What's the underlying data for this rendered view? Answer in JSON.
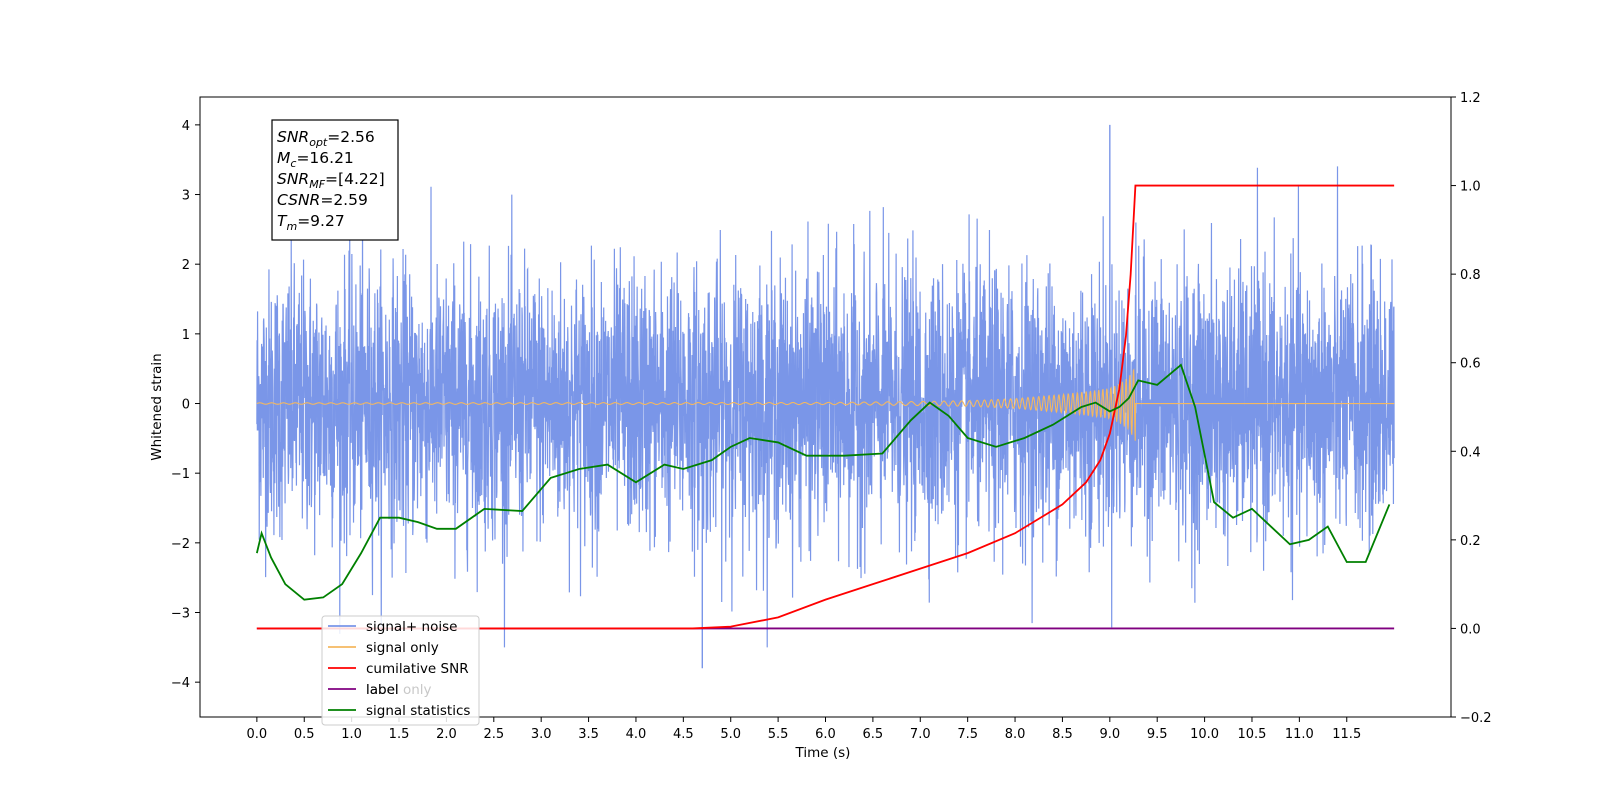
{
  "chart_data": {
    "type": "line",
    "xlabel": "Time (s)",
    "ylabel": "Whitened strain",
    "xlim": [
      -0.6,
      12.6
    ],
    "ylim": [
      -4.5,
      4.4
    ],
    "y2lim": [
      -0.2,
      1.2
    ],
    "x_ticks": [
      "0.0",
      "0.5",
      "1.0",
      "1.5",
      "2.0",
      "2.5",
      "3.0",
      "3.5",
      "4.0",
      "4.5",
      "5.0",
      "5.5",
      "6.0",
      "6.5",
      "7.0",
      "7.5",
      "8.0",
      "8.5",
      "9.0",
      "9.5",
      "10.0",
      "10.5",
      "11.0",
      "11.5"
    ],
    "y_ticks": [
      "4",
      "3",
      "2",
      "1",
      "0",
      "−1",
      "−2",
      "−3",
      "−4"
    ],
    "y2_ticks": [
      "1.2",
      "1.0",
      "0.8",
      "0.6",
      "0.4",
      "0.2",
      "0.0",
      "−0.2"
    ],
    "legend": {
      "location": "lower left",
      "entries": [
        {
          "label": "signal+ noise",
          "color": "#7a96e8"
        },
        {
          "label": "signal only",
          "color": "#f4b860"
        },
        {
          "label": "cumilative SNR",
          "color": "#ff0000"
        },
        {
          "label": "label",
          "color": "#800080"
        },
        {
          "label": "signal statistics",
          "color": "#008000"
        }
      ],
      "hidden_partial_label": "label only"
    },
    "info_box": {
      "lines": [
        {
          "sym": "SNR",
          "sub": "opt",
          "value": "=2.56"
        },
        {
          "sym": "M",
          "sub": "c",
          "value": "=16.21"
        },
        {
          "sym": "SNR",
          "sub": "MF",
          "value": "=[4.22]"
        },
        {
          "sym": "CSNR",
          "sub": "",
          "value": "=2.59"
        },
        {
          "sym": "T",
          "sub": "m",
          "value": "=9.27"
        }
      ]
    },
    "series": [
      {
        "name": "signal+ noise",
        "color": "#7a96e8",
        "axis": "left",
        "x_range": [
          0,
          12
        ],
        "envelope_typical": [
          -2.2,
          2.2
        ],
        "max_peak": 4.0,
        "min_peak": -3.8
      },
      {
        "name": "signal only",
        "color": "#f4b860",
        "axis": "left",
        "x": [
          0,
          6.0,
          7.0,
          7.5,
          8.0,
          8.5,
          8.8,
          9.0,
          9.1,
          9.2,
          9.27,
          12
        ],
        "amplitude": [
          0.01,
          0.015,
          0.03,
          0.04,
          0.07,
          0.13,
          0.18,
          0.22,
          0.28,
          0.38,
          0.55,
          0.0
        ]
      },
      {
        "name": "cumilative SNR",
        "color": "#ff0000",
        "axis": "right",
        "x": [
          0,
          4.6,
          5.0,
          5.5,
          6.0,
          6.5,
          7.0,
          7.5,
          8.0,
          8.5,
          8.75,
          8.9,
          9.0,
          9.1,
          9.17,
          9.22,
          9.26,
          9.27,
          9.3,
          12.0
        ],
        "y": [
          0.0,
          0.0,
          0.004,
          0.025,
          0.065,
          0.1,
          0.135,
          0.17,
          0.215,
          0.28,
          0.33,
          0.38,
          0.44,
          0.54,
          0.66,
          0.8,
          0.96,
          1.0,
          1.0,
          1.0
        ]
      },
      {
        "name": "label",
        "color": "#800080",
        "axis": "right",
        "x": [
          0,
          12
        ],
        "y": [
          0.0,
          0.0
        ]
      },
      {
        "name": "signal statistics",
        "color": "#008000",
        "axis": "right",
        "x": [
          0.0,
          0.05,
          0.15,
          0.3,
          0.5,
          0.7,
          0.9,
          1.1,
          1.3,
          1.5,
          1.7,
          1.9,
          2.1,
          2.4,
          2.8,
          3.1,
          3.4,
          3.7,
          4.0,
          4.3,
          4.5,
          4.8,
          5.0,
          5.2,
          5.5,
          5.8,
          6.2,
          6.6,
          6.9,
          7.1,
          7.3,
          7.5,
          7.8,
          8.1,
          8.4,
          8.7,
          8.85,
          9.0,
          9.1,
          9.2,
          9.3,
          9.5,
          9.75,
          9.9,
          10.1,
          10.3,
          10.5,
          10.7,
          10.9,
          11.1,
          11.3,
          11.5,
          11.7,
          11.95
        ],
        "y": [
          0.17,
          0.215,
          0.16,
          0.1,
          0.065,
          0.07,
          0.1,
          0.17,
          0.25,
          0.25,
          0.24,
          0.225,
          0.225,
          0.27,
          0.265,
          0.34,
          0.36,
          0.37,
          0.33,
          0.37,
          0.36,
          0.38,
          0.41,
          0.43,
          0.42,
          0.39,
          0.39,
          0.395,
          0.47,
          0.51,
          0.48,
          0.43,
          0.41,
          0.43,
          0.46,
          0.5,
          0.51,
          0.49,
          0.5,
          0.52,
          0.56,
          0.55,
          0.595,
          0.5,
          0.285,
          0.25,
          0.27,
          0.23,
          0.19,
          0.2,
          0.23,
          0.15,
          0.15,
          0.28
        ]
      }
    ]
  }
}
